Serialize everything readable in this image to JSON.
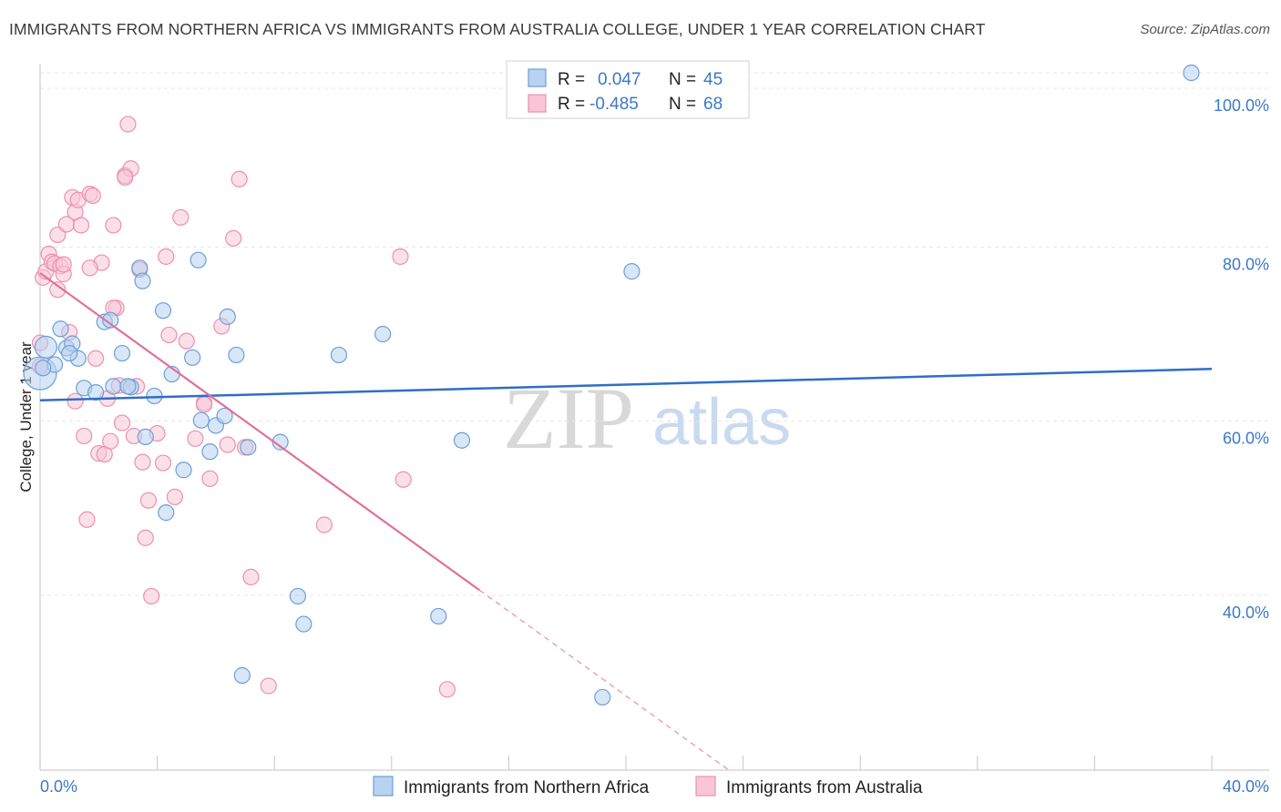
{
  "title": "IMMIGRANTS FROM NORTHERN AFRICA VS IMMIGRANTS FROM AUSTRALIA COLLEGE, UNDER 1 YEAR CORRELATION CHART",
  "source": "Source: ZipAtlas.com",
  "watermark": {
    "zip": "ZIP",
    "atlas": "atlas"
  },
  "legend_top": {
    "rows": [
      {
        "r_label": "R =",
        "r_value": "0.047",
        "n_label": "N =",
        "n_value": "45",
        "color": "#7aaae6"
      },
      {
        "r_label": "R =",
        "r_value": "-0.485",
        "n_label": "N =",
        "n_value": "68",
        "color": "#f4a6c0"
      }
    ]
  },
  "colors": {
    "blue_fill": "#b8d2f0",
    "blue_stroke": "#6c9fd8",
    "blue_line": "#2e6fc6",
    "pink_fill": "#f8c6d6",
    "pink_stroke": "#ec8fb0",
    "pink_line": "#e0709a"
  },
  "chart_data": {
    "type": "scatter",
    "title": "IMMIGRANTS FROM NORTHERN AFRICA VS IMMIGRANTS FROM AUSTRALIA COLLEGE, UNDER 1 YEAR CORRELATION CHART",
    "xlabel": "",
    "ylabel": "College, Under 1 year",
    "xlim": [
      0,
      40
    ],
    "ylim": [
      20,
      102
    ],
    "x_tick_labels": [
      "0.0%",
      "40.0%"
    ],
    "y_ticks": [
      40,
      60,
      80,
      100
    ],
    "y_tick_labels": [
      "40.0%",
      "60.0%",
      "80.0%",
      "100.0%"
    ],
    "grid": true,
    "series": [
      {
        "name": "Immigrants from Northern Africa",
        "legend_label": "Immigrants from Northern Africa",
        "trend": {
          "x": [
            0,
            40
          ],
          "y": [
            62.4,
            66.0
          ]
        },
        "points": [
          [
            0.0,
            65.5
          ],
          [
            0.2,
            68.5
          ],
          [
            0.5,
            66.5
          ],
          [
            0.7,
            70.6
          ],
          [
            0.9,
            68.4
          ],
          [
            1.1,
            68.9
          ],
          [
            1.3,
            67.2
          ],
          [
            1.5,
            63.8
          ],
          [
            1.9,
            63.3
          ],
          [
            2.2,
            71.4
          ],
          [
            2.4,
            71.6
          ],
          [
            2.5,
            64.0
          ],
          [
            2.8,
            67.8
          ],
          [
            3.1,
            63.9
          ],
          [
            3.4,
            77.6
          ],
          [
            3.5,
            76.1
          ],
          [
            3.6,
            58.2
          ],
          [
            3.9,
            62.9
          ],
          [
            4.2,
            72.7
          ],
          [
            4.3,
            49.5
          ],
          [
            4.5,
            65.4
          ],
          [
            4.9,
            54.4
          ],
          [
            5.2,
            67.3
          ],
          [
            5.4,
            78.5
          ],
          [
            5.5,
            60.1
          ],
          [
            5.8,
            56.5
          ],
          [
            6.0,
            59.5
          ],
          [
            6.3,
            60.6
          ],
          [
            6.4,
            72.0
          ],
          [
            6.7,
            67.6
          ],
          [
            6.9,
            30.8
          ],
          [
            7.1,
            57.0
          ],
          [
            8.2,
            57.6
          ],
          [
            8.8,
            39.9
          ],
          [
            9.0,
            36.7
          ],
          [
            10.2,
            67.6
          ],
          [
            11.7,
            70.0
          ],
          [
            13.6,
            37.6
          ],
          [
            14.4,
            57.8
          ],
          [
            19.2,
            28.3
          ],
          [
            20.2,
            77.2
          ],
          [
            39.3,
            100.0
          ],
          [
            0.1,
            66.1
          ],
          [
            1.0,
            67.8
          ],
          [
            3.0,
            64.0
          ]
        ]
      },
      {
        "name": "Immigrants from Australia",
        "legend_label": "Immigrants from Australia",
        "trend": {
          "x": [
            0,
            15.0
          ],
          "y": [
            77.0,
            40.6
          ]
        },
        "trend_dashed": {
          "x": [
            15.0,
            40
          ],
          "y": [
            40.6,
            -20.1
          ]
        },
        "points": [
          [
            0.0,
            69.0
          ],
          [
            0.1,
            76.5
          ],
          [
            0.2,
            77.2
          ],
          [
            0.3,
            79.2
          ],
          [
            0.4,
            78.3
          ],
          [
            0.5,
            78.1
          ],
          [
            0.6,
            81.4
          ],
          [
            0.7,
            77.8
          ],
          [
            0.8,
            76.9
          ],
          [
            0.9,
            82.6
          ],
          [
            1.0,
            70.2
          ],
          [
            1.1,
            85.7
          ],
          [
            1.2,
            84.0
          ],
          [
            1.3,
            85.4
          ],
          [
            1.4,
            82.5
          ],
          [
            1.5,
            58.3
          ],
          [
            1.6,
            48.7
          ],
          [
            1.7,
            86.1
          ],
          [
            1.8,
            85.9
          ],
          [
            1.9,
            67.2
          ],
          [
            2.0,
            56.3
          ],
          [
            2.1,
            78.2
          ],
          [
            2.2,
            56.2
          ],
          [
            2.3,
            62.6
          ],
          [
            2.4,
            57.7
          ],
          [
            2.5,
            82.5
          ],
          [
            2.6,
            73.0
          ],
          [
            2.7,
            64.1
          ],
          [
            2.8,
            59.8
          ],
          [
            2.9,
            88.2
          ],
          [
            3.0,
            94.1
          ],
          [
            3.1,
            89.0
          ],
          [
            3.2,
            58.3
          ],
          [
            3.4,
            77.4
          ],
          [
            3.5,
            55.3
          ],
          [
            3.6,
            46.6
          ],
          [
            3.7,
            50.9
          ],
          [
            3.8,
            39.9
          ],
          [
            4.0,
            58.6
          ],
          [
            4.2,
            55.2
          ],
          [
            4.4,
            69.9
          ],
          [
            4.6,
            51.3
          ],
          [
            4.8,
            83.4
          ],
          [
            5.0,
            69.2
          ],
          [
            5.3,
            58.0
          ],
          [
            5.6,
            62.1
          ],
          [
            5.8,
            53.4
          ],
          [
            6.2,
            70.9
          ],
          [
            6.4,
            57.3
          ],
          [
            6.6,
            81.0
          ],
          [
            6.8,
            87.8
          ],
          [
            7.0,
            57.0
          ],
          [
            7.2,
            42.1
          ],
          [
            7.8,
            29.6
          ],
          [
            9.7,
            48.1
          ],
          [
            12.3,
            78.9
          ],
          [
            12.4,
            53.3
          ],
          [
            13.9,
            29.2
          ],
          [
            0.0,
            66.3
          ],
          [
            2.9,
            88.0
          ],
          [
            1.7,
            77.6
          ],
          [
            4.3,
            78.9
          ],
          [
            0.6,
            75.1
          ],
          [
            1.2,
            62.3
          ],
          [
            3.3,
            64.0
          ],
          [
            5.6,
            61.9
          ],
          [
            0.8,
            78.0
          ],
          [
            2.5,
            73.0
          ]
        ]
      }
    ],
    "bottom_legend_placement": "bottom-center",
    "stats_legend_placement": "top-center"
  }
}
